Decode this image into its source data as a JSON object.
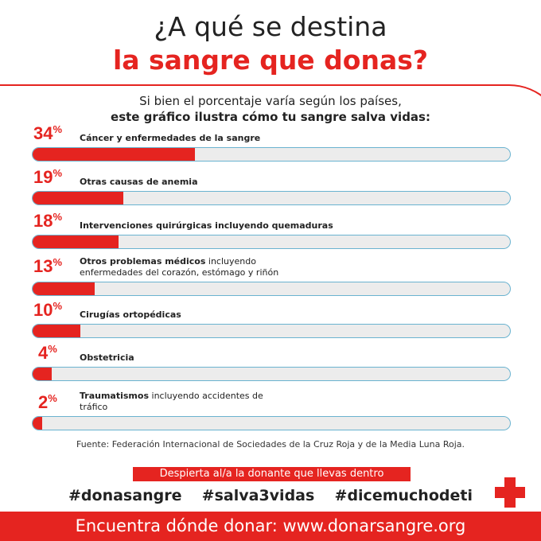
{
  "header": {
    "title_line1": "¿A qué se destina",
    "title_line2": "la sangre que donas?",
    "subtitle_line1": "Si bien el porcentaje varía según los países,",
    "subtitle_line2": "este gráfico ilustra cómo tu sangre salva vidas:"
  },
  "chart_data": {
    "type": "bar",
    "orientation": "horizontal",
    "xlim": [
      0,
      100
    ],
    "categories": [
      {
        "bold": "Cáncer y enfermedades de la sangre",
        "rest": ""
      },
      {
        "bold": "Otras causas de anemia",
        "rest": ""
      },
      {
        "bold": "Intervenciones quirúrgicas incluyendo quemaduras",
        "rest": ""
      },
      {
        "bold": "Otros problemas médicos",
        "rest": " incluyendo enfermedades del corazón, estómago y riñón"
      },
      {
        "bold": "Cirugías ortopédicas",
        "rest": ""
      },
      {
        "bold": "Obstetricia",
        "rest": ""
      },
      {
        "bold": "Traumatismos",
        "rest": " incluyendo accidentes de tráfico"
      }
    ],
    "values": [
      34,
      19,
      18,
      13,
      10,
      4,
      2
    ],
    "value_labels": [
      "34",
      "19",
      "18",
      "13",
      "10",
      "4",
      "2"
    ],
    "unit": "%",
    "colors": {
      "fill": "#e52420",
      "track": "#ececec",
      "track_border": "#6ab3d0"
    }
  },
  "source": "Fuente: Federación Internacional de Sociedades de la Cruz Roja y de la Media Luna Roja.",
  "tagline": "Despierta al/a la donante que llevas dentro",
  "hashtags": "#donasangre  #salva3vidas  #dicemuchodeti",
  "footer": "Encuentra dónde donar: www.donarsangre.org",
  "icons": {
    "logo": "red-cross-icon"
  }
}
